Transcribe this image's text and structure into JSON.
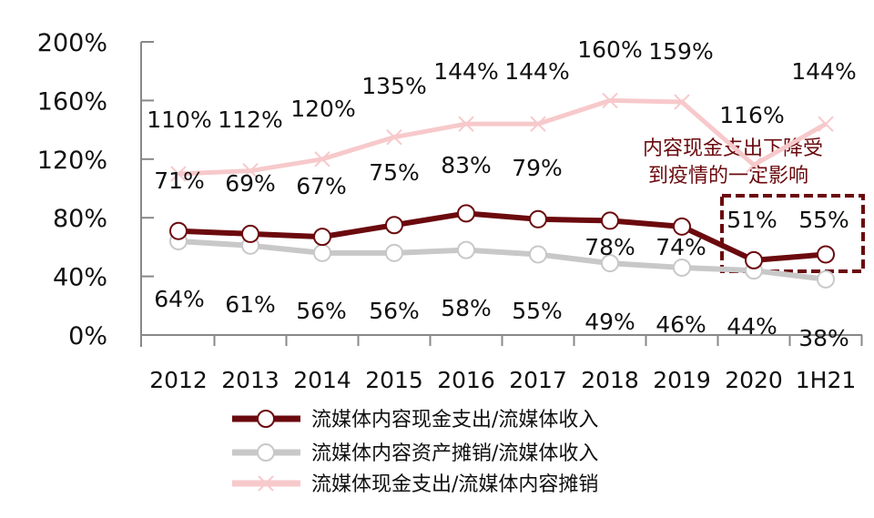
{
  "chart_data": {
    "type": "line",
    "categories": [
      "2012",
      "2013",
      "2014",
      "2015",
      "2016",
      "2017",
      "2018",
      "2019",
      "2020",
      "1H21"
    ],
    "ylim": [
      0,
      200
    ],
    "yticks": [
      "0%",
      "40%",
      "80%",
      "120%",
      "160%",
      "200%"
    ],
    "ytick_values": [
      0,
      40,
      80,
      120,
      160,
      200
    ],
    "grid": false,
    "legend_position": "bottom",
    "series": [
      {
        "name": "流媒体内容现金支出/流媒体收入",
        "color": "#6b0a0e",
        "marker": "circle",
        "values": [
          71,
          69,
          67,
          75,
          83,
          79,
          78,
          74,
          51,
          55
        ],
        "labels": [
          "71%",
          "69%",
          "67%",
          "75%",
          "83%",
          "79%",
          "78%",
          "74%",
          "51%",
          "55%"
        ]
      },
      {
        "name": "流媒体内容资产摊销/流媒体收入",
        "color": "#c8c8c8",
        "marker": "circle",
        "values": [
          64,
          61,
          56,
          56,
          58,
          55,
          49,
          46,
          44,
          38
        ],
        "labels": [
          "64%",
          "61%",
          "56%",
          "56%",
          "58%",
          "55%",
          "49%",
          "46%",
          "44%",
          "38%"
        ]
      },
      {
        "name": "流媒体现金支出/流媒体内容摊销",
        "color": "#f7c9cb",
        "marker": "x",
        "values": [
          110,
          112,
          120,
          135,
          144,
          144,
          160,
          159,
          116,
          144
        ],
        "labels": [
          "110%",
          "112%",
          "120%",
          "135%",
          "144%",
          "144%",
          "160%",
          "159%",
          "116%",
          "144%"
        ]
      }
    ],
    "annotation": {
      "lines": [
        "内容现金支出下降受",
        "到疫情的一定影响"
      ],
      "color": "#6b0a0e",
      "highlight": [
        "2020",
        "1H21"
      ]
    }
  }
}
